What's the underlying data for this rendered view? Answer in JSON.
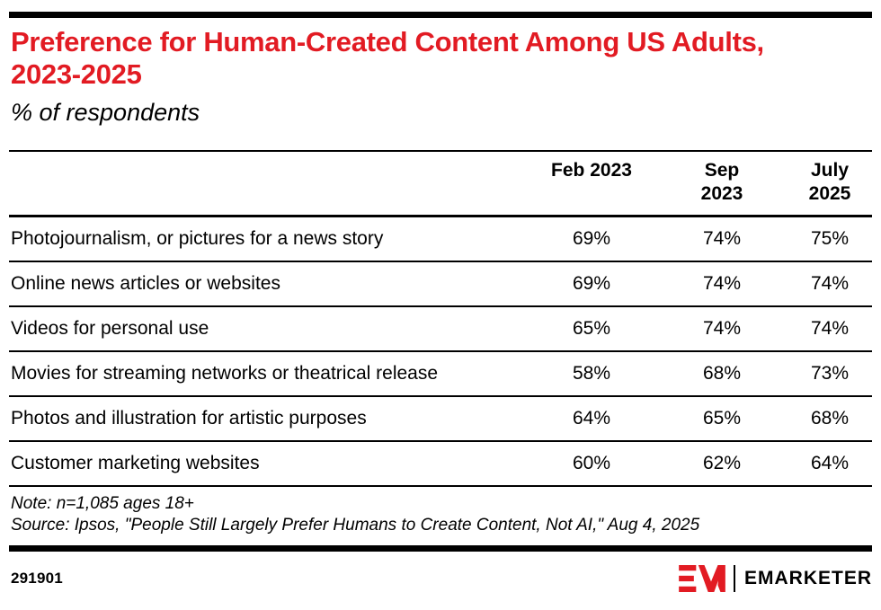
{
  "header": {
    "title": "Preference for Human-Created Content Among US Adults, 2023-2025",
    "subtitle": "% of respondents"
  },
  "table": {
    "columns": [
      "Feb 2023",
      "Sep 2023",
      "July 2025"
    ],
    "rows": [
      {
        "label": "Photojournalism, or pictures for a news story",
        "values": [
          "69%",
          "74%",
          "75%"
        ]
      },
      {
        "label": "Online news articles or websites",
        "values": [
          "69%",
          "74%",
          "74%"
        ]
      },
      {
        "label": "Videos for personal use",
        "values": [
          "65%",
          "74%",
          "74%"
        ]
      },
      {
        "label": "Movies for streaming networks or theatrical release",
        "values": [
          "58%",
          "68%",
          "73%"
        ]
      },
      {
        "label": "Photos and illustration for artistic purposes",
        "values": [
          "64%",
          "65%",
          "68%"
        ]
      },
      {
        "label": "Customer marketing websites",
        "values": [
          "60%",
          "62%",
          "64%"
        ]
      }
    ]
  },
  "chart_data": {
    "type": "table",
    "title": "Preference for Human-Created Content Among US Adults, 2023-2025",
    "subtitle": "% of respondents",
    "unit": "%",
    "categories": [
      "Feb 2023",
      "Sep 2023",
      "July 2025"
    ],
    "series": [
      {
        "name": "Photojournalism, or pictures for a news story",
        "values": [
          69,
          74,
          75
        ]
      },
      {
        "name": "Online news articles or websites",
        "values": [
          69,
          74,
          74
        ]
      },
      {
        "name": "Videos for personal use",
        "values": [
          65,
          74,
          74
        ]
      },
      {
        "name": "Movies for streaming networks or theatrical release",
        "values": [
          58,
          68,
          73
        ]
      },
      {
        "name": "Photos and illustration for artistic purposes",
        "values": [
          64,
          65,
          68
        ]
      },
      {
        "name": "Customer marketing websites",
        "values": [
          60,
          62,
          64
        ]
      }
    ],
    "note": "Note: n=1,085 ages 18+",
    "source": "Source: Ipsos, \"People Still Largely Prefer Humans to Create Content, Not AI,\" Aug 4, 2025"
  },
  "footnotes": {
    "note": "Note: n=1,085 ages 18+",
    "source": "Source: Ipsos, \"People Still Largely Prefer Humans to Create Content, Not AI,\" Aug 4, 2025"
  },
  "footer": {
    "chart_id": "291901",
    "brand_name": "EMARKETER"
  },
  "colors": {
    "accent_red": "#E21B23",
    "text": "#000000",
    "background": "#FFFFFF"
  }
}
